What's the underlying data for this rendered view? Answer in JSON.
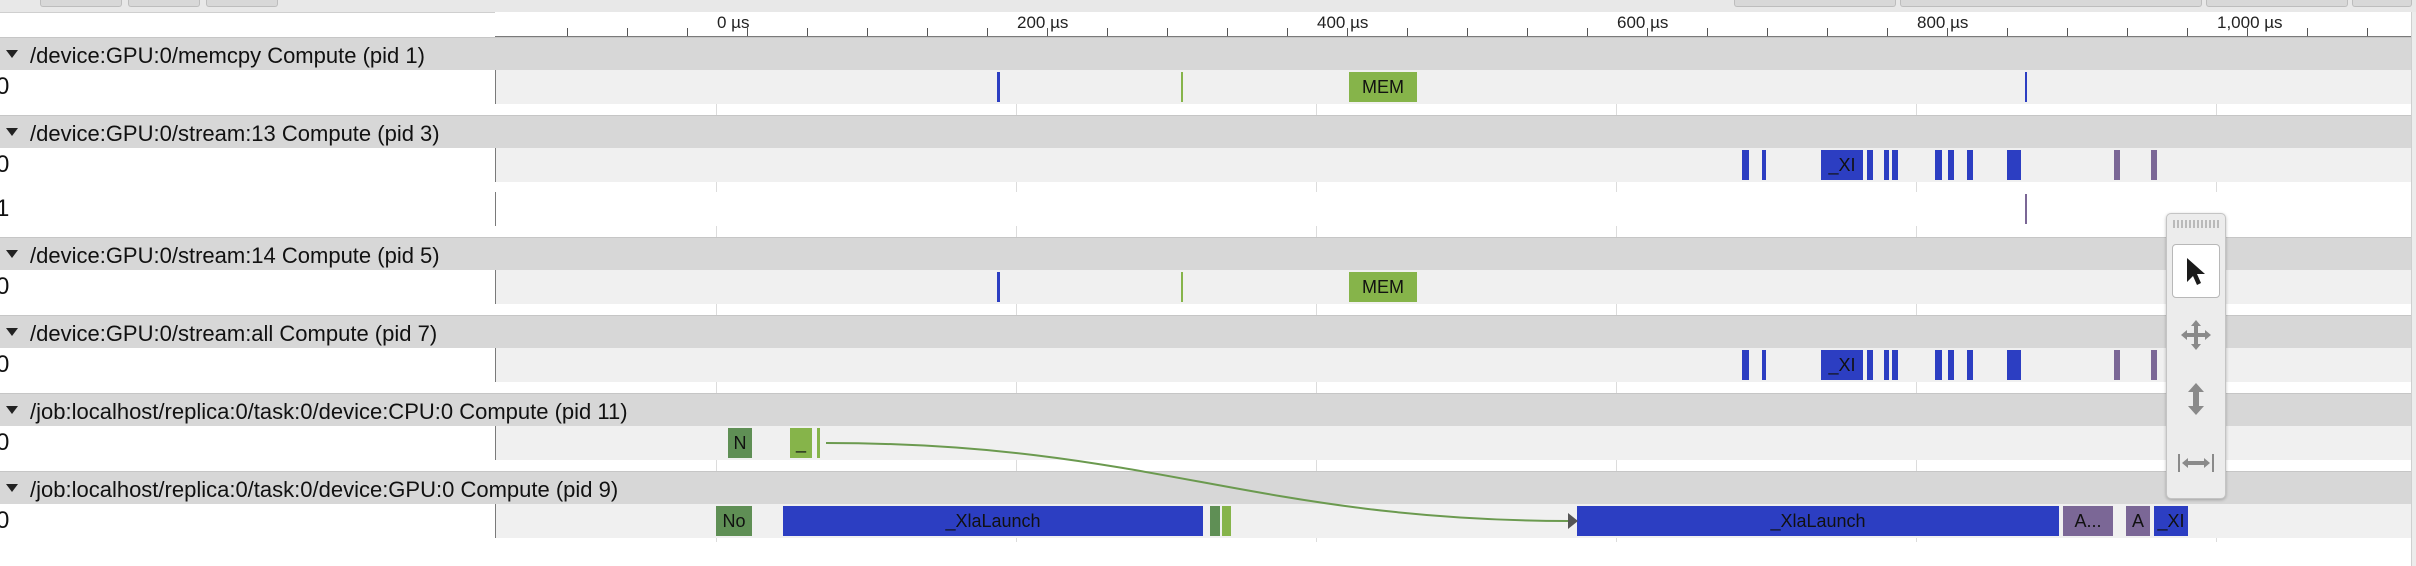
{
  "ruler": {
    "labels": [
      "0 µs",
      "200 µs",
      "400 µs",
      "600 µs",
      "800 µs",
      "1,000 µs"
    ]
  },
  "processes": [
    {
      "title": "/device:GPU:0/memcpy Compute (pid 1)",
      "threads": [
        "0"
      ]
    },
    {
      "title": "/device:GPU:0/stream:13 Compute (pid 3)",
      "threads": [
        "0",
        "1"
      ]
    },
    {
      "title": "/device:GPU:0/stream:14 Compute (pid 5)",
      "threads": [
        "0"
      ]
    },
    {
      "title": "/device:GPU:0/stream:all Compute (pid 7)",
      "threads": [
        "0"
      ]
    },
    {
      "title": "/job:localhost/replica:0/task:0/device:CPU:0 Compute (pid 11)",
      "threads": [
        "0"
      ]
    },
    {
      "title": "/job:localhost/replica:0/task:0/device:GPU:0 Compute (pid 9)",
      "threads": [
        "0"
      ]
    }
  ],
  "slice_labels": {
    "mem": "MEM",
    "xi": "_XI",
    "n": "N",
    "underscore": "_",
    "no": "No",
    "xla_launch": "_XlaLaunch",
    "a_ellipsis": "A...",
    "a": "A",
    "xi2": "_XI"
  },
  "mouse_toolbar": {
    "tools": [
      {
        "name": "selection",
        "icon": "arrow-cursor-icon",
        "active": true
      },
      {
        "name": "pan",
        "icon": "move-icon",
        "active": false
      },
      {
        "name": "zoom",
        "icon": "vertical-arrows-icon",
        "active": false
      },
      {
        "name": "timing",
        "icon": "horizontal-span-icon",
        "active": false
      }
    ]
  },
  "colors": {
    "blue": "#2c3ec2",
    "green": "#86b44a",
    "dark_green": "#5f8f55",
    "purple": "#7b6796",
    "header_bg": "#d7d7d7",
    "flow_arrow": "#6b9a4f"
  }
}
